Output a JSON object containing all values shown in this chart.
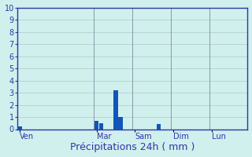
{
  "title": "",
  "xlabel": "Précipitations 24h ( mm )",
  "ylabel": "",
  "background_color": "#cff0ec",
  "bar_color": "#1155bb",
  "grid_color": "#b0c8c8",
  "axis_color": "#3333aa",
  "label_color": "#3333aa",
  "ylim": [
    0,
    10
  ],
  "yticks": [
    0,
    1,
    2,
    3,
    4,
    5,
    6,
    7,
    8,
    9,
    10
  ],
  "num_bars": 48,
  "bar_values": [
    0.2,
    0.0,
    0.0,
    0.0,
    0.0,
    0.0,
    0.0,
    0.0,
    0.0,
    0.0,
    0.0,
    0.0,
    0.0,
    0.0,
    0.0,
    0.0,
    0.7,
    0.5,
    0.0,
    0.0,
    3.2,
    1.0,
    0.0,
    0.0,
    0.0,
    0.0,
    0.0,
    0.0,
    0.0,
    0.4,
    0.0,
    0.0,
    0.0,
    0.0,
    0.0,
    0.0,
    0.0,
    0.0,
    0.0,
    0.0,
    0.0,
    0.0,
    0.0,
    0.0,
    0.0,
    0.0,
    0.0,
    0.0
  ],
  "bar_width": 0.9,
  "day_labels": [
    "Ven",
    "Mar",
    "Sam",
    "Dim",
    "Lun"
  ],
  "day_tick_positions": [
    0,
    16,
    24,
    32,
    40
  ],
  "day_boundary_lines": [
    0,
    16,
    24,
    32,
    40
  ],
  "xlabel_fontsize": 9,
  "tick_fontsize": 7,
  "spine_linewidth": 1.0
}
